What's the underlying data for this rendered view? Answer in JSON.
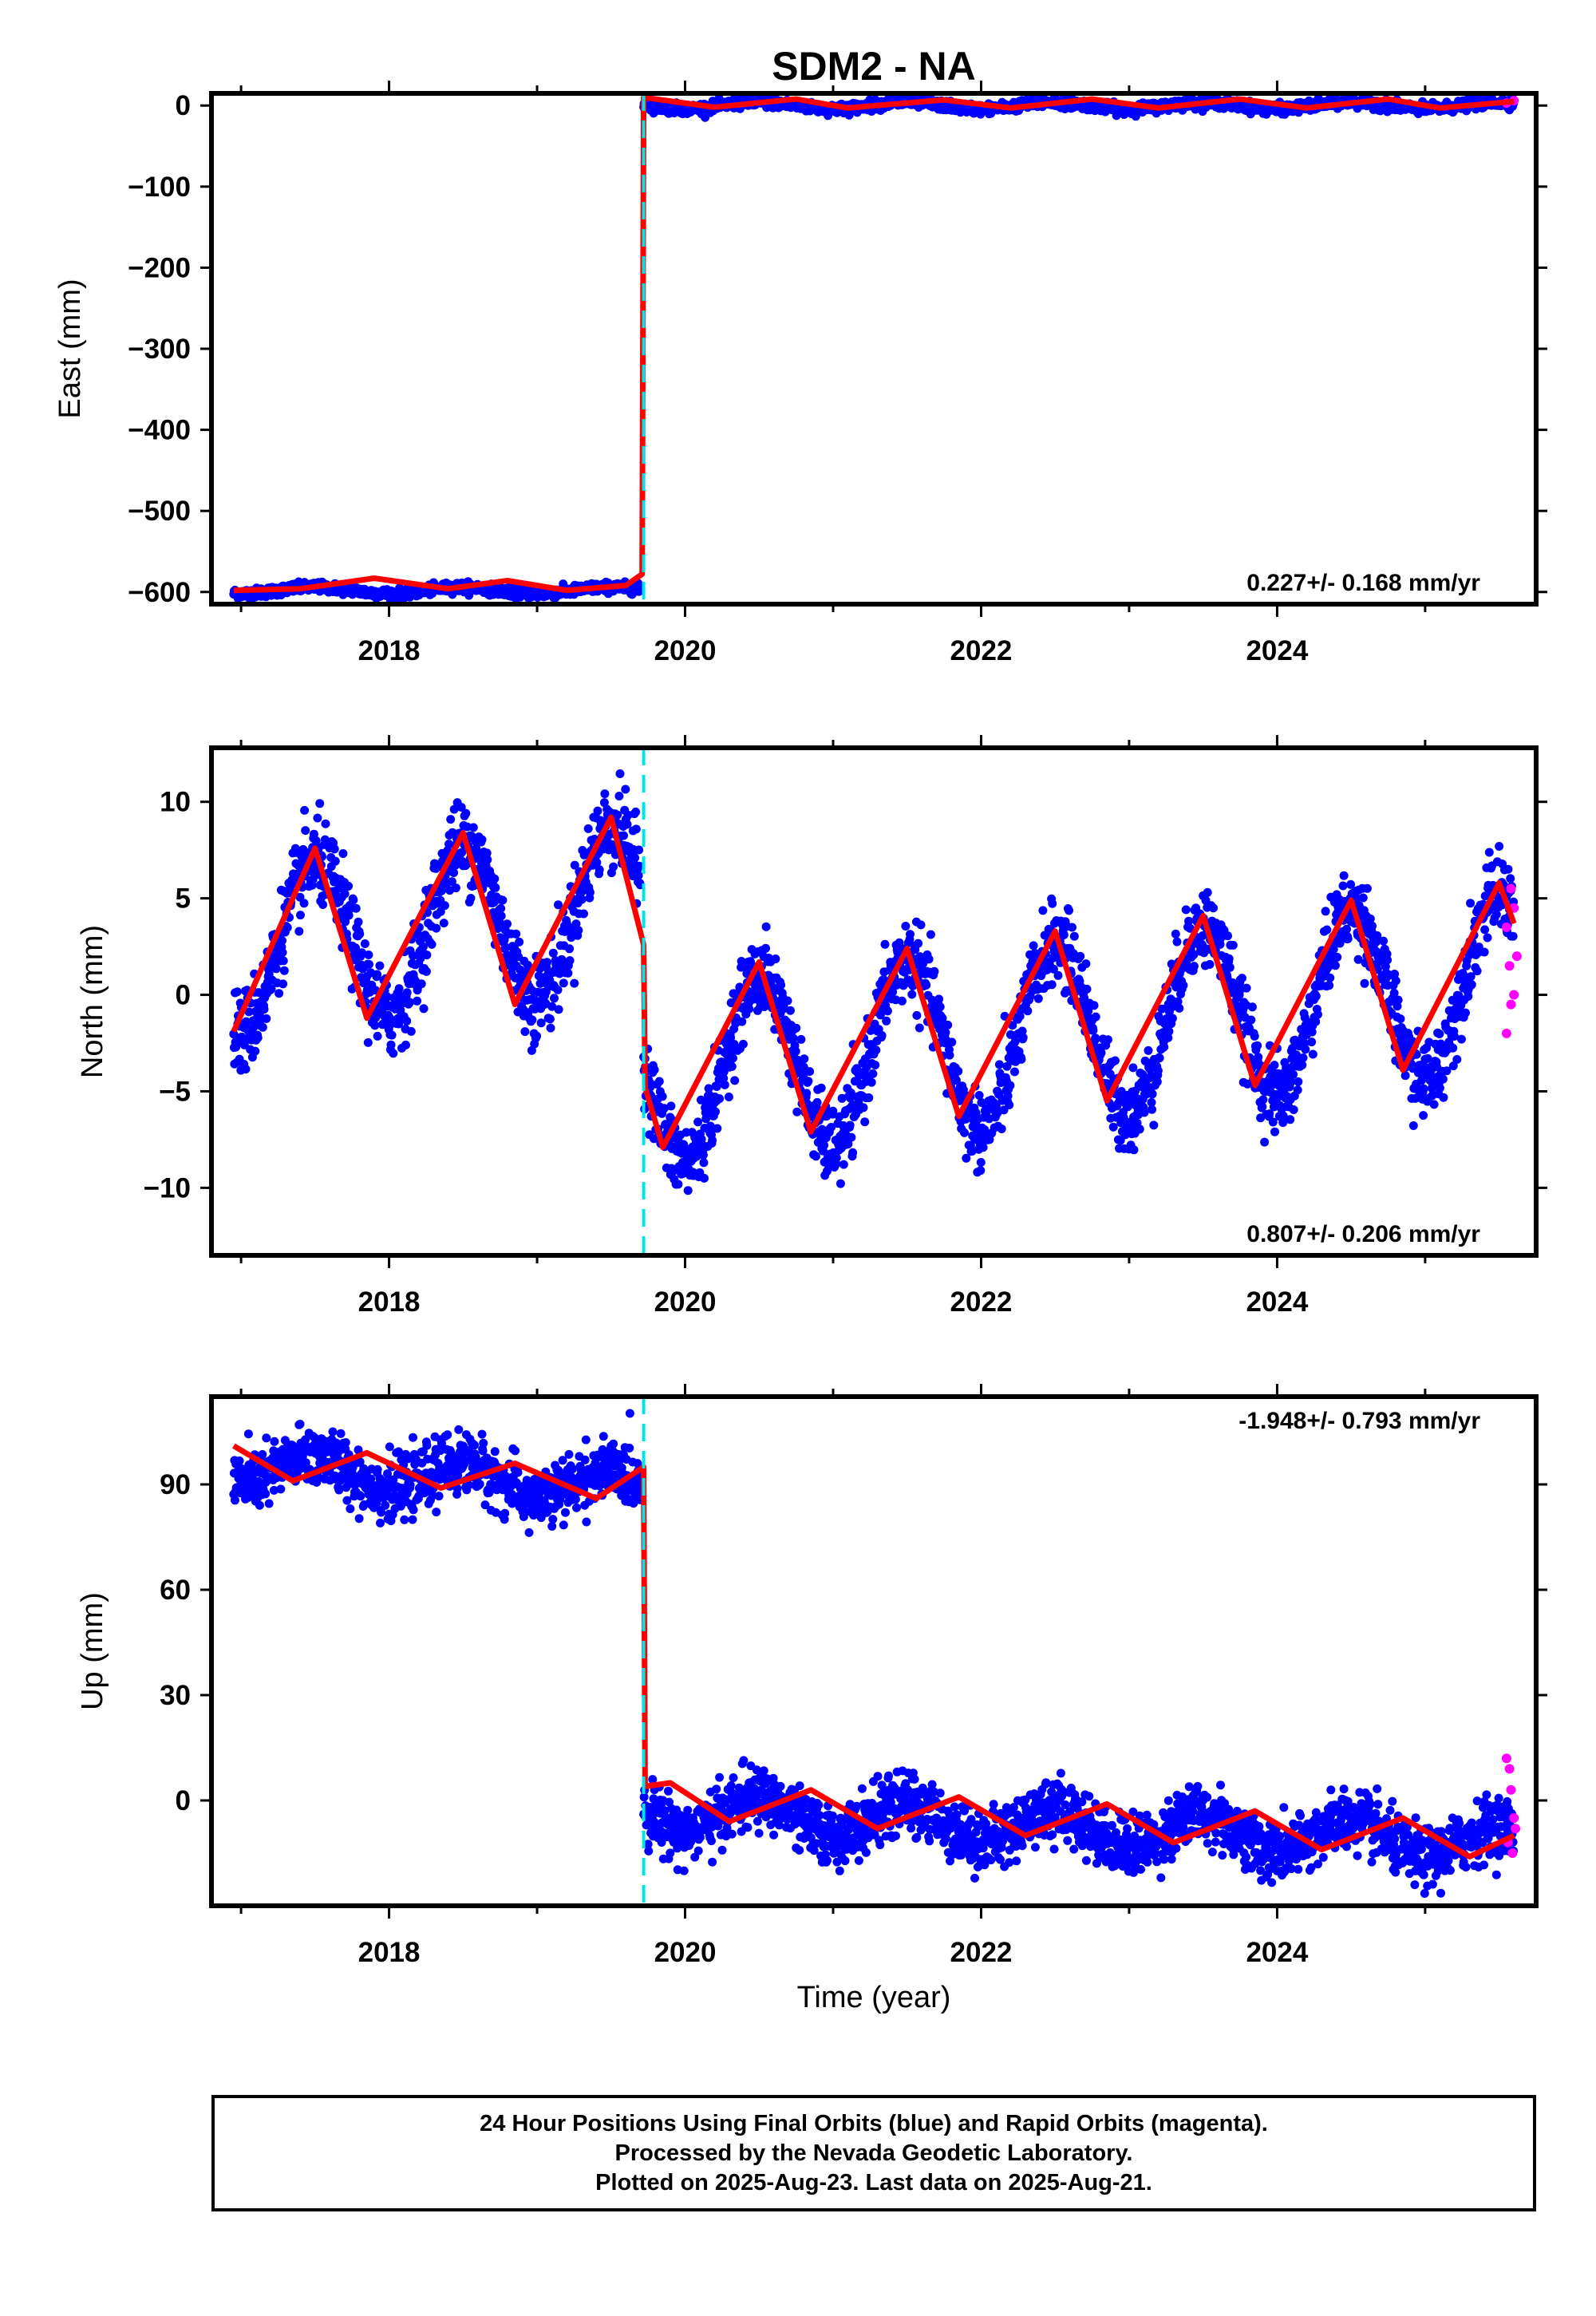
{
  "title": "SDM2 - NA",
  "xlabel": "Time (year)",
  "colors": {
    "final": "#0000ff",
    "rapid": "#ff00ff",
    "model": "#ff0000",
    "offset": "#00e5e5"
  },
  "footer": {
    "line1": "24 Hour Positions Using Final Orbits (blue) and Rapid Orbits (magenta).",
    "line2": "Processed by the Nevada Geodetic Laboratory.",
    "line3": "Plotted on 2025-Aug-23. Last data on 2025-Aug-21."
  },
  "chart_data": [
    {
      "type": "scatter",
      "ylabel": "East (mm)",
      "rate": "0.227+/- 0.168 mm/yr",
      "xlim": [
        2016.8,
        2025.75
      ],
      "ylim": [
        -615,
        15
      ],
      "yticks": [
        0,
        -100,
        -200,
        -300,
        -400,
        -500,
        -600
      ],
      "xticks": [
        2018,
        2020,
        2022,
        2024
      ],
      "offset_epoch": 2019.72,
      "segments": [
        {
          "x_range": [
            2016.95,
            2019.7
          ],
          "level": -598,
          "noise": 3,
          "amp": 4
        },
        {
          "x_range": [
            2019.72,
            2025.6
          ],
          "level": 0,
          "noise": 3,
          "amp": 4
        }
      ],
      "model": {
        "x": [
          2016.95,
          2017.4,
          2017.9,
          2018.4,
          2018.8,
          2019.2,
          2019.6,
          2019.71,
          2019.72,
          2020.2,
          2020.75,
          2021.1,
          2021.75,
          2022.2,
          2022.75,
          2023.2,
          2023.75,
          2024.2,
          2024.75,
          2025.1,
          2025.6
        ],
        "y": [
          -598,
          -596,
          -583,
          -596,
          -586,
          -598,
          -592,
          -578,
          10,
          -2,
          8,
          -3,
          7,
          -3,
          8,
          -3,
          8,
          -3,
          8,
          -3,
          5
        ]
      },
      "rapid": {
        "x": [
          2025.55,
          2025.6
        ],
        "y": [
          3,
          6
        ]
      }
    },
    {
      "type": "scatter",
      "ylabel": "North (mm)",
      "rate": "0.807+/- 0.206 mm/yr",
      "xlim": [
        2016.8,
        2025.75
      ],
      "ylim": [
        -13.5,
        12.8
      ],
      "yticks": [
        10,
        5,
        0,
        -5,
        -10
      ],
      "xticks": [
        2018,
        2020,
        2022,
        2024
      ],
      "offset_epoch": 2019.72,
      "segments": [
        {
          "x_range": [
            2016.95,
            2019.7
          ],
          "level": 2.2,
          "trend": 0.9,
          "amp": 4.2,
          "noise": 1.1
        },
        {
          "x_range": [
            2019.72,
            2025.6
          ],
          "level": -4.3,
          "trend": 0.85,
          "amp": 4.6,
          "noise": 1.0
        }
      ],
      "model": {
        "x": [
          2016.95,
          2017.5,
          2017.85,
          2018.5,
          2018.85,
          2019.5,
          2019.72,
          2019.73,
          2019.85,
          2020.5,
          2020.85,
          2021.5,
          2021.85,
          2022.5,
          2022.85,
          2023.5,
          2023.85,
          2024.5,
          2024.85,
          2025.5,
          2025.6
        ],
        "y": [
          -1.9,
          7.6,
          -1.2,
          8.4,
          -0.5,
          9.2,
          2.6,
          -4.8,
          -7.9,
          1.7,
          -7.1,
          2.4,
          -6.3,
          3.3,
          -5.5,
          4.1,
          -4.7,
          4.9,
          -3.9,
          5.8,
          3.7
        ]
      },
      "rapid": {
        "x": [
          2025.55,
          2025.57,
          2025.58,
          2025.6,
          2025.62,
          2025.55,
          2025.58,
          2025.6
        ],
        "y": [
          3.5,
          1.5,
          -0.5,
          4.5,
          2,
          -2,
          5.5,
          0
        ]
      }
    },
    {
      "type": "scatter",
      "ylabel": "Up (mm)",
      "rate": "-1.948+/- 0.793 mm/yr",
      "xlim": [
        2016.8,
        2025.75
      ],
      "ylim": [
        -30,
        115
      ],
      "yticks": [
        90,
        60,
        30,
        0
      ],
      "xticks": [
        2018,
        2020,
        2022,
        2024
      ],
      "offset_epoch": 2019.72,
      "segments": [
        {
          "x_range": [
            2016.95,
            2019.7
          ],
          "level": 95,
          "trend": -2.2,
          "amp": 4.5,
          "noise": 4.2
        },
        {
          "x_range": [
            2019.72,
            2025.6
          ],
          "level": -3,
          "trend": -1.6,
          "amp": 5,
          "noise": 4.2
        }
      ],
      "model": {
        "x": [
          2016.95,
          2017.35,
          2017.85,
          2018.35,
          2018.85,
          2019.4,
          2019.72,
          2019.73,
          2019.9,
          2020.3,
          2020.85,
          2021.3,
          2021.85,
          2022.3,
          2022.85,
          2023.3,
          2023.85,
          2024.3,
          2024.85,
          2025.3,
          2025.6
        ],
        "y": [
          101,
          91,
          99,
          89,
          96,
          86,
          95,
          4,
          5,
          -6,
          3,
          -8,
          1,
          -10,
          -1,
          -12,
          -3,
          -14,
          -5,
          -16,
          -10
        ]
      },
      "rapid": {
        "x": [
          2025.55,
          2025.57,
          2025.58,
          2025.6,
          2025.56,
          2025.59,
          2025.61
        ],
        "y": [
          12,
          9,
          3,
          -5,
          -12,
          -15,
          -8
        ]
      }
    }
  ]
}
